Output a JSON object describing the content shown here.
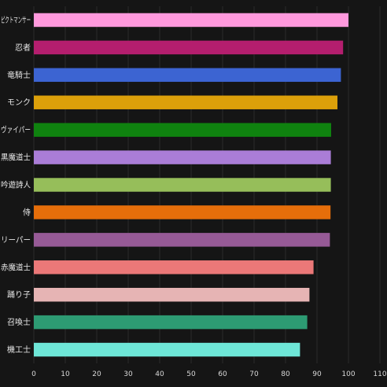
{
  "chart_data": {
    "type": "bar",
    "orientation": "horizontal",
    "title": "",
    "xlabel": "",
    "ylabel": "",
    "xlim": [
      0,
      110
    ],
    "x_ticks": [
      0,
      10,
      20,
      30,
      40,
      50,
      60,
      70,
      80,
      90,
      100,
      110
    ],
    "grid": true,
    "categories": [
      "ピクトマンサー",
      "忍者",
      "竜騎士",
      "モンク",
      "ヴァイパー",
      "黒魔道士",
      "吟遊詩人",
      "侍",
      "リーパー",
      "赤魔道士",
      "踊り子",
      "召喚士",
      "機工士"
    ],
    "values": [
      100.0,
      98.3,
      97.6,
      96.5,
      94.5,
      94.4,
      94.4,
      94.3,
      94.1,
      88.9,
      87.6,
      86.9,
      84.6
    ],
    "colors": [
      "#ff99dd",
      "#b41e6e",
      "#3c64d2",
      "#dca00a",
      "#0f820f",
      "#aa7dd7",
      "#96be5a",
      "#e66e0a",
      "#965a96",
      "#eb7878",
      "#e6b4b4",
      "#2d9b73",
      "#6ee6d7"
    ]
  }
}
